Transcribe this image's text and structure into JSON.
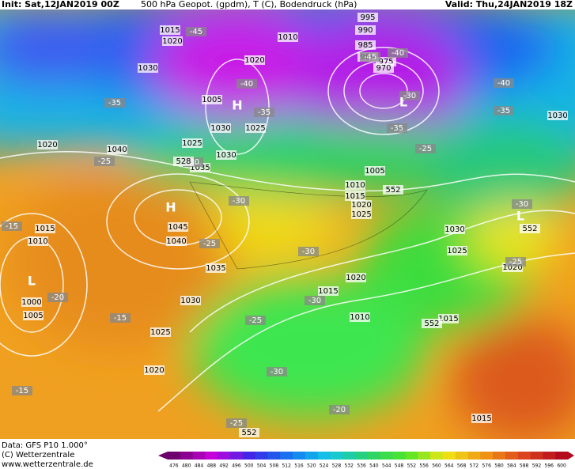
{
  "header": {
    "init": "Init: Sat,12JAN2019 00Z",
    "title": "500 hPa Geopot. (gpdm), T (C), Bodendruck (hPa)",
    "valid": "Valid: Thu,24JAN2019 18Z"
  },
  "footer": {
    "data": "Data: GFS P10 1.000°",
    "copyright": "(C) Wetterzentrale",
    "url": "www.wetterzentrale.de"
  },
  "colorbar_labels": [
    476,
    480,
    484,
    488,
    492,
    496,
    500,
    504,
    508,
    512,
    516,
    520,
    524,
    528,
    532,
    536,
    540,
    544,
    548,
    552,
    556,
    560,
    564,
    568,
    572,
    576,
    580,
    584,
    588,
    592,
    596,
    600
  ],
  "map": {
    "pressure_labels": [
      "1015",
      "1020",
      "1030",
      "1010",
      "995",
      "990",
      "985",
      "980",
      "975",
      "970",
      "1005",
      "1020",
      "1030",
      "1025",
      "1025",
      "1040",
      "1020",
      "1030",
      "1035",
      "1005",
      "1010",
      "1015",
      "1020",
      "1025",
      "1045",
      "1040",
      "1035",
      "1030",
      "1025",
      "1020",
      "1015",
      "1010",
      "1000",
      "1005",
      "1030",
      "1025",
      "1020",
      "1020",
      "1015",
      "1010",
      "1015",
      "1015",
      "1030"
    ],
    "temperature_labels": [
      "-35",
      "-40",
      "-45",
      "-40",
      "-45",
      "-30",
      "-35",
      "-25",
      "-40",
      "-35",
      "-35",
      "-30",
      "-25",
      "-30",
      "-25",
      "-30",
      "-20",
      "-15",
      "-15",
      "-15",
      "-25",
      "-30",
      "-30",
      "-25",
      "-20",
      "-30",
      "-25"
    ],
    "geopotential_labels": [
      "552",
      "552",
      "552",
      "552",
      "528"
    ],
    "centers": [
      "H",
      "L",
      "H",
      "L",
      "L"
    ]
  }
}
